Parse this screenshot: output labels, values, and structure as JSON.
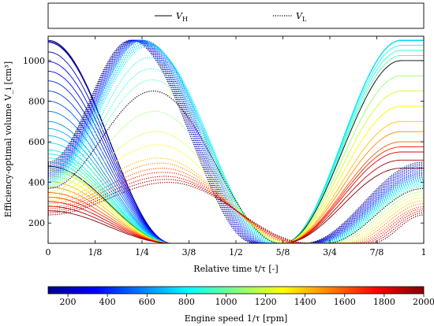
{
  "chart_data": {
    "type": "line",
    "title": "",
    "xlabel": "Relative time t/τ [-]",
    "ylabel": "Efficiency-optimal volume V_i [cm³]",
    "xlim": [
      0,
      1
    ],
    "ylim": [
      100,
      1120
    ],
    "x_ticks": [
      0,
      0.125,
      0.25,
      0.375,
      0.5,
      0.625,
      0.75,
      0.875,
      1
    ],
    "x_tick_labels": [
      "0",
      "1/8",
      "1/4",
      "3/8",
      "1/2",
      "5/8",
      "3/4",
      "7/8",
      "1"
    ],
    "y_ticks": [
      200,
      400,
      600,
      800,
      1000
    ],
    "y_tick_labels": [
      "200",
      "400",
      "600",
      "800",
      "1000"
    ],
    "grid": false,
    "legend": {
      "position": "top",
      "entries": [
        {
          "label": "V_H",
          "main": "V",
          "sub": "H",
          "style": "solid"
        },
        {
          "label": "V_L",
          "main": "V",
          "sub": "L",
          "style": "dotted"
        }
      ]
    },
    "colorbar": {
      "label": "Engine speed 1/τ [rpm]",
      "min": 100,
      "max": 2000,
      "ticks": [
        200,
        400,
        600,
        800,
        1000,
        1200,
        1400,
        1600,
        1800,
        2000
      ],
      "colormap": "jet"
    },
    "speeds_rpm": [
      100,
      150,
      200,
      250,
      300,
      350,
      400,
      450,
      500,
      550,
      600,
      650,
      700,
      750,
      800,
      850,
      900,
      950,
      1000,
      1100,
      1200,
      1300,
      1400,
      1500,
      1600,
      1700,
      1800,
      1900,
      2000
    ],
    "series_model": {
      "V_H": {
        "min_volume": 100,
        "max_volume_by_speed": [
          [
            100,
            1100
          ],
          [
            800,
            1100
          ],
          [
            1000,
            1000
          ],
          [
            1200,
            850
          ],
          [
            1400,
            700
          ],
          [
            1600,
            600
          ],
          [
            1800,
            550
          ],
          [
            2000,
            470
          ]
        ],
        "start_value_by_speed": [
          [
            100,
            1100
          ],
          [
            200,
            1090
          ],
          [
            400,
            900
          ],
          [
            600,
            700
          ],
          [
            800,
            560
          ],
          [
            1000,
            480
          ],
          [
            1200,
            460
          ],
          [
            1600,
            350
          ],
          [
            2000,
            260
          ]
        ],
        "plateau_start": 0.33,
        "plateau_end": 0.625,
        "rise_end": 0.94
      },
      "V_L": {
        "min_volume": 100,
        "max_volume_by_speed": [
          [
            100,
            1100
          ],
          [
            600,
            1100
          ],
          [
            800,
            1070
          ],
          [
            1000,
            850
          ],
          [
            1200,
            650
          ],
          [
            1400,
            520
          ],
          [
            1600,
            470
          ],
          [
            1800,
            430
          ],
          [
            2000,
            400
          ]
        ],
        "start_value_by_speed": [
          [
            100,
            500
          ],
          [
            400,
            450
          ],
          [
            800,
            400
          ],
          [
            1200,
            340
          ],
          [
            1600,
            280
          ],
          [
            2000,
            240
          ]
        ],
        "peak_time_by_speed": [
          [
            100,
            0.22
          ],
          [
            1000,
            0.28
          ],
          [
            2000,
            0.32
          ]
        ],
        "min_start_by_speed": [
          [
            100,
            0.55
          ],
          [
            1000,
            0.62
          ],
          [
            2000,
            0.7
          ]
        ],
        "min_end_by_speed": [
          [
            100,
            0.68
          ],
          [
            1000,
            0.74
          ],
          [
            2000,
            0.86
          ]
        ]
      }
    }
  }
}
